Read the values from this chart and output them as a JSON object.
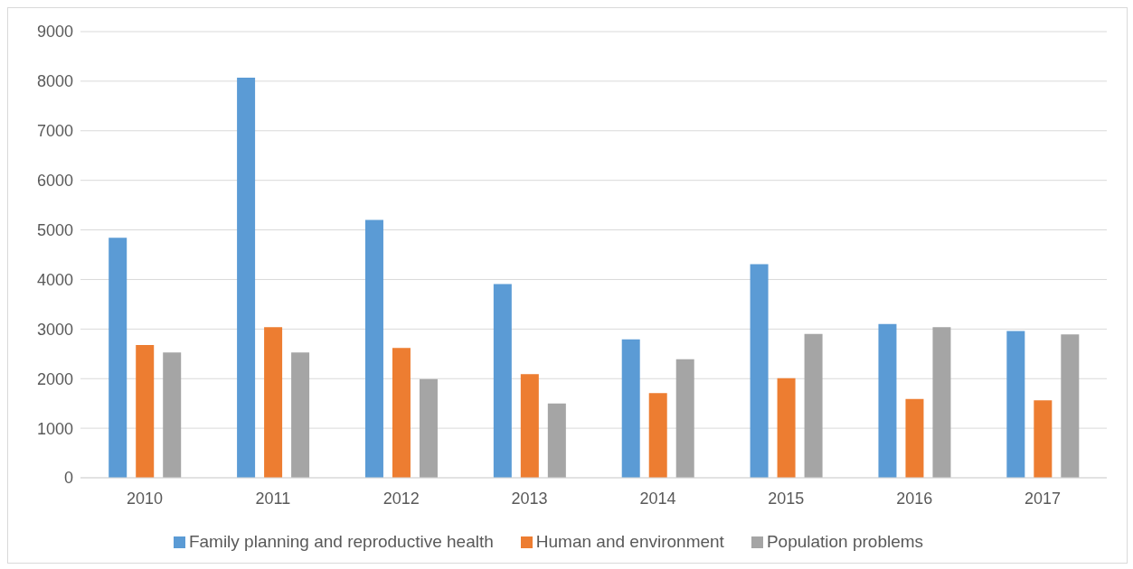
{
  "chart_data": {
    "type": "bar",
    "categories": [
      "2010",
      "2011",
      "2012",
      "2013",
      "2014",
      "2015",
      "2016",
      "2017"
    ],
    "series": [
      {
        "name": "Family planning and reproductive health",
        "color": "#5b9bd5",
        "values": [
          4840,
          8070,
          5200,
          3910,
          2790,
          4310,
          3100,
          2960
        ]
      },
      {
        "name": "Human and environment",
        "color": "#ed7d31",
        "values": [
          2680,
          3040,
          2620,
          2090,
          1710,
          2010,
          1590,
          1560
        ]
      },
      {
        "name": "Population problems",
        "color": "#a5a5a5",
        "values": [
          2530,
          2530,
          1990,
          1500,
          2390,
          2900,
          3040,
          2890
        ]
      }
    ],
    "ylim": [
      0,
      9000
    ],
    "yticks": [
      0,
      1000,
      2000,
      3000,
      4000,
      5000,
      6000,
      7000,
      8000,
      9000
    ],
    "grid": "y",
    "legend": "bottom"
  }
}
